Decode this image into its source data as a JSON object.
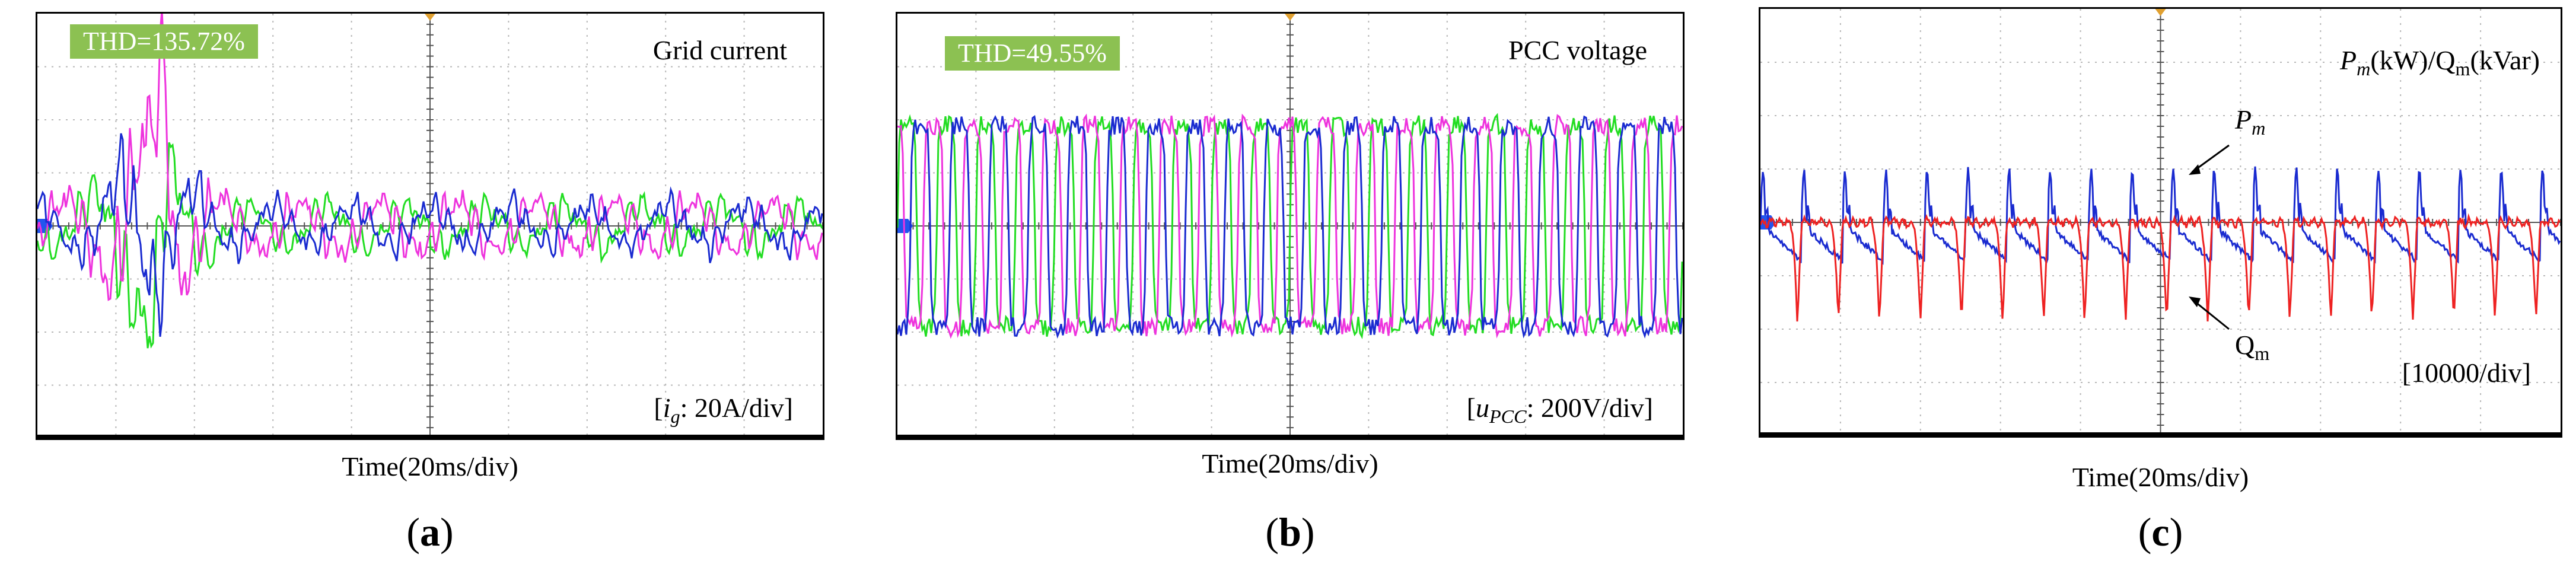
{
  "figure_panels": [
    {
      "id": "a",
      "caption_open": "(",
      "caption_letter": "a",
      "caption_close": ")",
      "thd": "THD=135.72%",
      "title": "Grid current",
      "scale_prefix": "[",
      "scale_var": "i",
      "scale_sub": "g",
      "scale_rest": ": 20A/div]",
      "xlabel": "Time(20ms/div)"
    },
    {
      "id": "b",
      "caption_open": "(",
      "caption_letter": "b",
      "caption_close": ")",
      "thd": "THD=49.55%",
      "title": "PCC voltage",
      "scale_prefix": "[",
      "scale_var": "u",
      "scale_sub": "PCC",
      "scale_rest": ": 200V/div]",
      "xlabel": "Time(20ms/div)"
    },
    {
      "id": "c",
      "caption_open": "(",
      "caption_letter": "c",
      "caption_close": ")",
      "title_p": "P",
      "title_p_sub": "m",
      "title_p_unit": "(kW)/",
      "title_q": "Q",
      "title_q_sub": "m",
      "title_q_unit": "(kVar)",
      "pm_label": "P",
      "pm_sub": "m",
      "qm_label": "Q",
      "qm_sub": "m",
      "scale": "[10000/div]",
      "xlabel": "Time(20ms/div)"
    }
  ],
  "chart_data": [
    {
      "type": "line",
      "title": "Grid current",
      "xlabel": "Time(20ms/div)",
      "ylabel": "i_g (20A/div)",
      "x_divisions": 10,
      "y_divisions": 8,
      "xlim_ms": [
        0,
        200
      ],
      "ylim_div": [
        -4,
        4
      ],
      "series": [
        {
          "name": "phase-green",
          "color": "#22dd22"
        },
        {
          "name": "phase-magenta",
          "color": "#ee33dd"
        },
        {
          "name": "phase-blue",
          "color": "#1a2bd0"
        }
      ],
      "annotation": "THD=135.72%",
      "grid": true
    },
    {
      "type": "line",
      "title": "PCC voltage",
      "xlabel": "Time(20ms/div)",
      "ylabel": "u_PCC (200V/div)",
      "x_divisions": 10,
      "y_divisions": 8,
      "xlim_ms": [
        0,
        200
      ],
      "ylim_div": [
        -4,
        4
      ],
      "series": [
        {
          "name": "phase-green",
          "color": "#22dd22"
        },
        {
          "name": "phase-magenta",
          "color": "#ee33dd"
        },
        {
          "name": "phase-blue",
          "color": "#1a2bd0"
        }
      ],
      "annotation": "THD=49.55%",
      "grid": true
    },
    {
      "type": "line",
      "title": "Pm(kW)/Qm(kVar)",
      "xlabel": "Time(20ms/div)",
      "ylabel": "10000/div",
      "x_divisions": 10,
      "y_divisions": 8,
      "xlim_ms": [
        0,
        200
      ],
      "ylim_div": [
        -4,
        4
      ],
      "series": [
        {
          "name": "Pm",
          "color": "#1a2bd0"
        },
        {
          "name": "Qm",
          "color": "#ee2222"
        }
      ],
      "grid": true
    }
  ],
  "colors": {
    "green": "#22dd22",
    "magenta": "#ee33dd",
    "blue": "#1a2bd0",
    "red": "#ee2222",
    "thd_bg": "#8cc152",
    "marker": "#e0a030",
    "ground_marker": "#2255ee"
  }
}
